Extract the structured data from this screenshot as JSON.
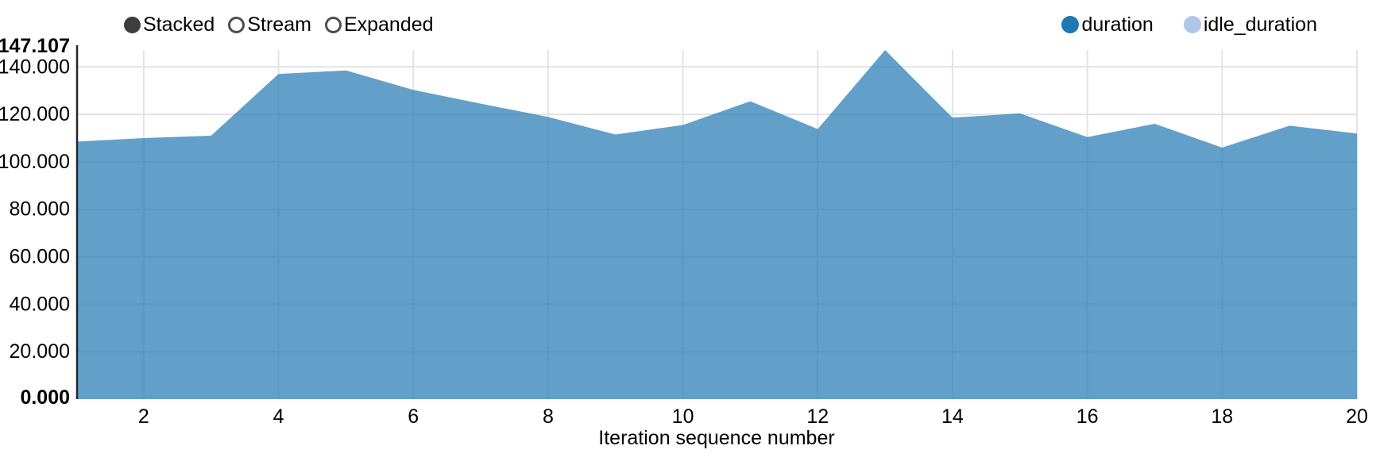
{
  "controls": {
    "options": [
      {
        "label": "Stacked",
        "selected": true
      },
      {
        "label": "Stream",
        "selected": false
      },
      {
        "label": "Expanded",
        "selected": false
      }
    ]
  },
  "legend": {
    "series": [
      {
        "label": "duration",
        "color": "#1f77b4"
      },
      {
        "label": "idle_duration",
        "color": "#aec7e8"
      }
    ]
  },
  "chart_data": {
    "type": "area",
    "variant": "stacked-area",
    "title": "",
    "xlabel": "Iteration sequence number",
    "ylabel": "",
    "x": [
      1,
      2,
      3,
      4,
      5,
      6,
      7,
      8,
      9,
      10,
      11,
      12,
      13,
      14,
      15,
      16,
      17,
      18,
      19,
      20
    ],
    "series": [
      {
        "name": "duration",
        "color": "#1f77b4",
        "values": [
          108.5,
          110.0,
          111.0,
          137.0,
          138.5,
          130.3,
          124.5,
          118.9,
          111.5,
          115.5,
          125.5,
          113.8,
          147.107,
          118.6,
          120.4,
          110.4,
          116.0,
          106.0,
          115.2,
          111.9
        ]
      },
      {
        "name": "idle_duration",
        "color": "#aec7e8",
        "values": [
          0,
          0,
          0,
          0,
          0,
          0,
          0,
          0,
          0,
          0,
          0,
          0,
          0,
          0,
          0,
          0,
          0,
          0,
          0,
          0
        ]
      }
    ],
    "ylim": [
      0,
      147.107
    ],
    "xlim": [
      1,
      20
    ],
    "yticks": [
      {
        "value": 0,
        "label": "0.000",
        "bold": true,
        "grid": false,
        "dy": 6
      },
      {
        "value": 20,
        "label": "20.000",
        "bold": false,
        "grid": true,
        "dy": 8
      },
      {
        "value": 40,
        "label": "40.000",
        "bold": false,
        "grid": true,
        "dy": 8
      },
      {
        "value": 60,
        "label": "60.000",
        "bold": false,
        "grid": true,
        "dy": 8
      },
      {
        "value": 80,
        "label": "80.000",
        "bold": false,
        "grid": true,
        "dy": 8
      },
      {
        "value": 100,
        "label": "100.000",
        "bold": false,
        "grid": true,
        "dy": 8
      },
      {
        "value": 120,
        "label": "120.000",
        "bold": false,
        "grid": true,
        "dy": 8
      },
      {
        "value": 140,
        "label": "140.000",
        "bold": false,
        "grid": true,
        "dy": 8
      },
      {
        "value": 147.107,
        "label": "147.107",
        "bold": true,
        "grid": false,
        "dy": 3
      }
    ],
    "xticks": [
      2,
      4,
      6,
      8,
      10,
      12,
      14,
      16,
      18,
      20
    ],
    "grid": true,
    "grid_color": "#e3e3e3",
    "axis_color": "#262626",
    "area_fill_opacity": 0.7,
    "legend_position": "top-right"
  }
}
